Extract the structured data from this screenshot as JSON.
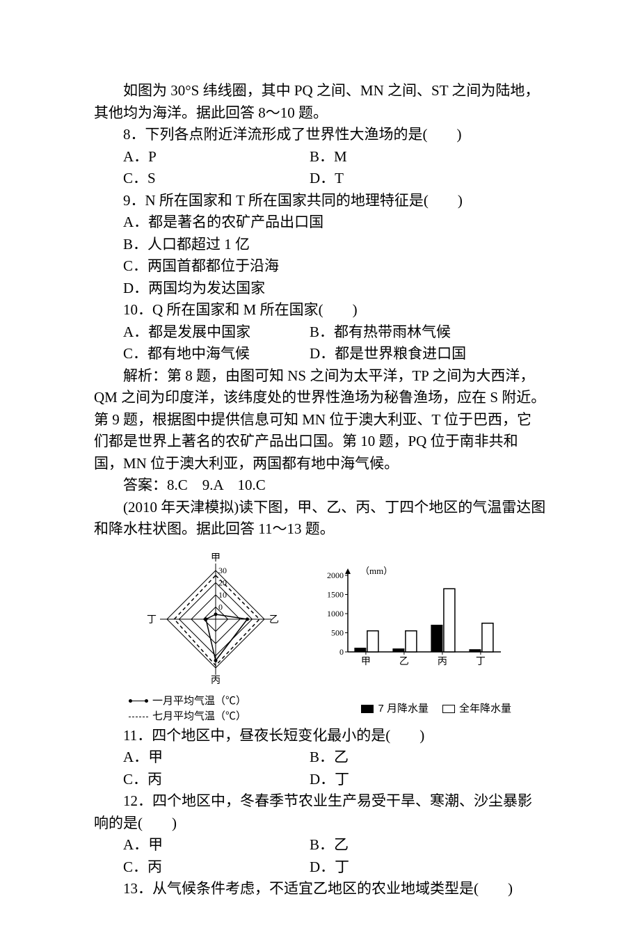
{
  "intro1": "如图为 30°S 纬线圈，其中 PQ 之间、MN 之间、ST 之间为陆地，其他均为海洋。据此回答 8～10 题。",
  "q8": {
    "stem": "8．下列各点附近洋流形成了世界性大渔场的是(　　)",
    "A": "A．P",
    "B": "B．M",
    "C": "C．S",
    "D": "D．T"
  },
  "q9": {
    "stem": "9．N 所在国家和 T 所在国家共同的地理特征是(　　)",
    "A": "A．都是著名的农矿产品出口国",
    "B": "B．人口都超过 1 亿",
    "C": "C．两国首都都位于沿海",
    "D": "D．两国均为发达国家"
  },
  "q10": {
    "stem": "10．Q 所在国家和 M 所在国家(　　)",
    "A": "A．都是发展中国家",
    "B": "B．都有热带雨林气候",
    "C": "C．都有地中海气候",
    "D": "D．都是世界粮食进口国"
  },
  "exp1": "解析：第 8 题，由图可知 NS 之间为太平洋，TP 之间为大西洋，QM 之间为印度洋，该纬度处的世界性渔场为秘鲁渔场，应在 S 附近。第 9 题，根据图中提供信息可知 MN 位于澳大利亚、T 位于巴西，它们都是世界上著名的农矿产品出口国。第 10 题，PQ 位于南非共和国，MN 位于澳大利亚，两国都有地中海气候。",
  "ans1": "答案：8.C　9.A　10.C",
  "intro2": "(2010 年天津模拟)读下图，甲、乙、丙、丁四个地区的气温雷达图和降水柱状图。据此回答 11～13 题。",
  "radar": {
    "type": "radar",
    "axes": [
      "甲",
      "乙",
      "丙",
      "丁"
    ],
    "rings": [
      0,
      10,
      20,
      30
    ],
    "ring_labels": [
      "0",
      "10",
      "20",
      "30"
    ],
    "jan": [
      -6,
      16,
      24,
      -2
    ],
    "jul": [
      26,
      26,
      28,
      24
    ],
    "line_color": "#000000",
    "dash_color": "#000000",
    "background": "#ffffff",
    "label_fontsize": 14
  },
  "bar": {
    "type": "bar",
    "categories": [
      "甲",
      "乙",
      "丙",
      "丁"
    ],
    "y_label": "（mm）",
    "ylim": [
      0,
      2000
    ],
    "ytick_step": 500,
    "yticks": [
      "0",
      "500",
      "1000",
      "1500",
      "2000"
    ],
    "jul_precip": [
      100,
      80,
      700,
      60
    ],
    "annual_precip": [
      550,
      550,
      1650,
      750
    ],
    "jul_color": "#000000",
    "annual_color": "#ffffff",
    "border_color": "#000000",
    "axis_label_fontsize": 14
  },
  "legend": {
    "jan": "一月平均气温（℃）",
    "jul_t": "七月平均气温（℃）",
    "jul_p": "7 月降水量",
    "annual": "全年降水量"
  },
  "q11": {
    "stem": "11．四个地区中，昼夜长短变化最小的是(　　)",
    "A": "A．甲",
    "B": "B．乙",
    "C": "C．丙",
    "D": "D．丁"
  },
  "q12": {
    "stem": "12．四个地区中，冬春季节农业生产易受干旱、寒潮、沙尘暴影响的是(　　)",
    "A": "A．甲",
    "B": "B．乙",
    "C": "C．丙",
    "D": "D．丁"
  },
  "q13": {
    "stem": "13．从气候条件考虑，不适宜乙地区的农业地域类型是(　　)"
  }
}
